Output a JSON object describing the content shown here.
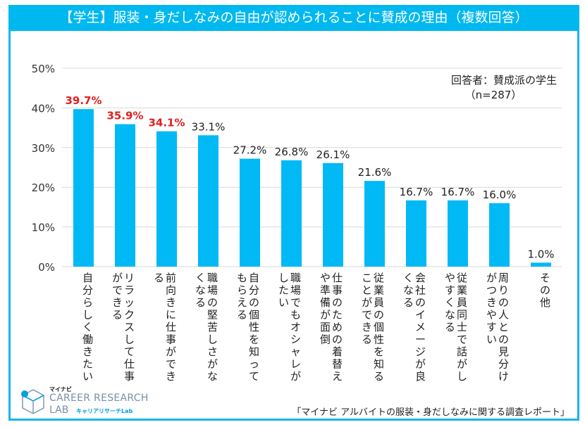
{
  "title": "【学生】服装・身だしなみの自由が認められることに賛成の理由（複数回答）",
  "respondent": {
    "line1": "回答者：賛成派の学生",
    "line2": "（n=287）"
  },
  "source": "「マイナビ アルバイトの服装・身だしなみに関する調査レポート」",
  "logo": {
    "brand_small": "マイナビ",
    "line1": "CAREER RESEARCH",
    "line2": "LAB",
    "line2_sub": "キャリアリサーチLab"
  },
  "colors": {
    "bar": "#00b9f5",
    "highlight_label": "#e02020",
    "normal_label": "#222222",
    "frame": "#1ab3ea"
  },
  "chart_data": {
    "type": "bar",
    "title": "【学生】服装・身だしなみの自由が認められることに賛成の理由（複数回答）",
    "xlabel": "",
    "ylabel": "",
    "ylim": [
      0,
      50
    ],
    "yticks": [
      0,
      10,
      20,
      30,
      40,
      50
    ],
    "ytick_labels": [
      "0%",
      "10%",
      "20%",
      "30%",
      "40%",
      "50%"
    ],
    "grid": true,
    "categories": [
      "自分らしく働きたい",
      "リラックスして仕事ができる",
      "前向きに仕事ができる",
      "職場の堅苦しさがなくなる",
      "自分の個性を知ってもらえる",
      "職場でもオシャレがしたい",
      "仕事のための着替えや準備が面倒",
      "従業員の個性を知ることができる",
      "会社のイメージが良くなる",
      "従業員同士で話がしやすくなる",
      "周りの人との見分けがつきやすい",
      "その他"
    ],
    "category_lines": [
      [
        "自分らしく働きたい"
      ],
      [
        "リラックスして仕事",
        "ができる"
      ],
      [
        "前向きに仕事ができ",
        "る"
      ],
      [
        "職場の堅苦しさがな",
        "くなる"
      ],
      [
        "自分の個性を知って",
        "もらえる"
      ],
      [
        "職場でもオシャレが",
        "したい"
      ],
      [
        "仕事のための着替え",
        "や準備が面倒"
      ],
      [
        "従業員の個性を知る",
        "ことができる"
      ],
      [
        "会社のイメージが良",
        "くなる"
      ],
      [
        "従業員同士で話がし",
        "やすくなる"
      ],
      [
        "周りの人との見分け",
        "がつきやすい"
      ],
      [
        "その他"
      ]
    ],
    "values": [
      39.7,
      35.9,
      34.1,
      33.1,
      27.2,
      26.8,
      26.1,
      21.6,
      16.7,
      16.7,
      16.0,
      1.0
    ],
    "value_labels": [
      "39.7%",
      "35.9%",
      "34.1%",
      "33.1%",
      "27.2%",
      "26.8%",
      "26.1%",
      "21.6%",
      "16.7%",
      "16.7%",
      "16.0%",
      "1.0%"
    ],
    "highlighted": [
      true,
      true,
      true,
      false,
      false,
      false,
      false,
      false,
      false,
      false,
      false,
      false
    ]
  }
}
